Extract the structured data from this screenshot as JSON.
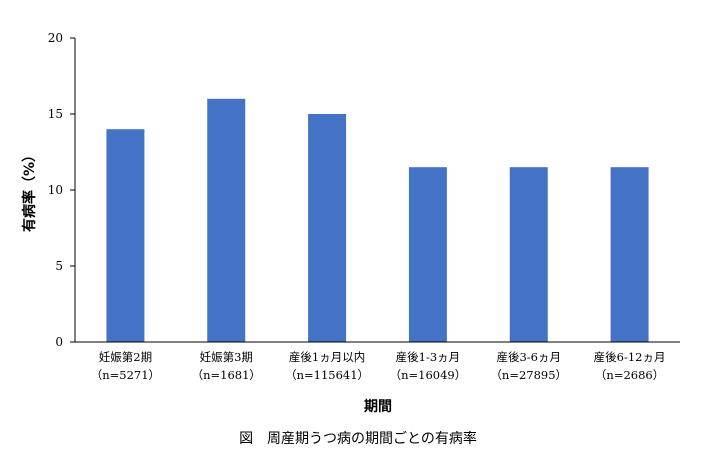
{
  "chart_data": {
    "type": "bar",
    "title": "図　周産期うつ病の期間ごとの有病率",
    "xlabel": "期間",
    "ylabel": "有病率（%）",
    "ylim": [
      0,
      20
    ],
    "yticks": [
      "0",
      "5",
      "10",
      "15",
      "20"
    ],
    "categories": [
      [
        "妊娠第2期",
        "（n=5271）"
      ],
      [
        "妊娠第3期",
        "（n=1681）"
      ],
      [
        "産後1ヵ月以内",
        "（n=115641）"
      ],
      [
        "産後1-3ヵ月",
        "（n=16049）"
      ],
      [
        "産後3-6ヵ月",
        "（n=27895）"
      ],
      [
        "産後6-12ヵ月",
        "（n=2686）"
      ]
    ],
    "values": [
      14,
      16,
      15,
      11.5,
      11.5,
      11.5
    ],
    "grid": false,
    "legend": "none",
    "bar_color": "#4472C4",
    "axis_color": "#000000"
  }
}
